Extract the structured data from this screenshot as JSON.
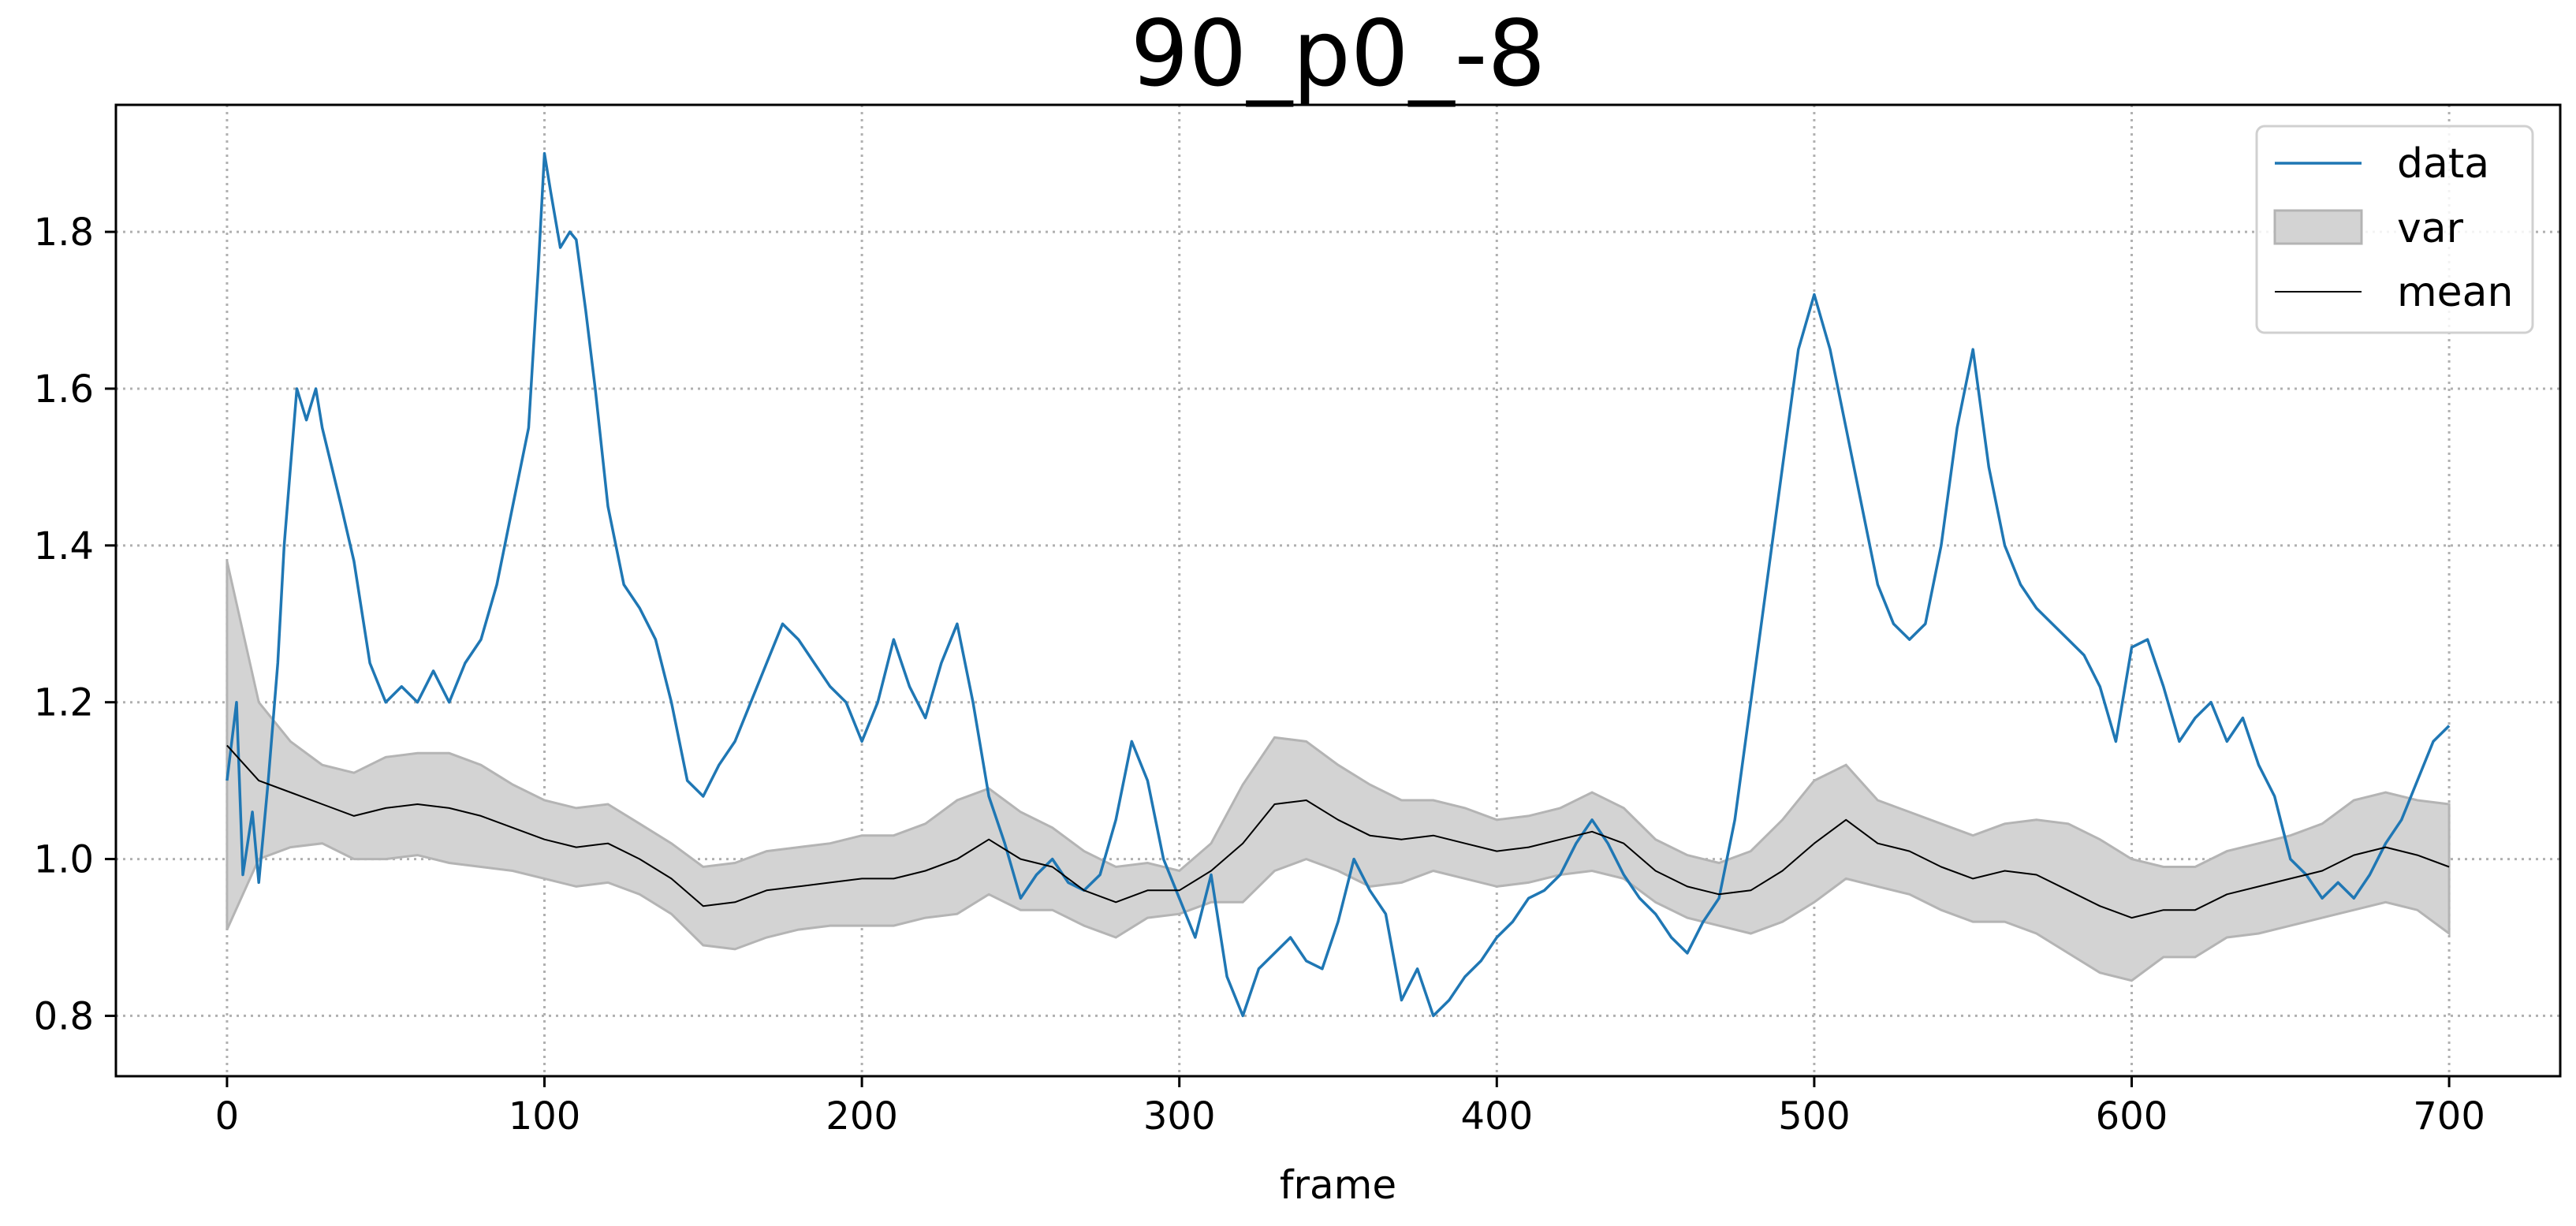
{
  "chart_data": {
    "type": "line",
    "title": "90_p0_-8",
    "xlabel": "frame",
    "ylabel": "",
    "xlim": [
      -35,
      735
    ],
    "ylim": [
      0.723,
      1.962
    ],
    "xticks": [
      0,
      100,
      200,
      300,
      400,
      500,
      600,
      700
    ],
    "xtick_labels": [
      "0",
      "100",
      "200",
      "300",
      "400",
      "500",
      "600",
      "700"
    ],
    "yticks": [
      0.8,
      1.0,
      1.2,
      1.4,
      1.6,
      1.8
    ],
    "ytick_labels": [
      "0.8",
      "1.0",
      "1.2",
      "1.4",
      "1.6",
      "1.8"
    ],
    "grid": true,
    "legend_position": "top-right",
    "legend": [
      "data",
      "var",
      "mean"
    ],
    "colors": {
      "data": "#1f77b4",
      "mean": "#000000",
      "var_fill": "#d3d3d3",
      "var_edge": "#b4b4b4",
      "grid": "#b0b0b0"
    },
    "series": [
      {
        "name": "data",
        "x": [
          0,
          3,
          5,
          8,
          10,
          13,
          16,
          18,
          20,
          22,
          25,
          28,
          30,
          33,
          36,
          40,
          45,
          50,
          55,
          60,
          65,
          70,
          75,
          80,
          85,
          90,
          95,
          98,
          100,
          102,
          105,
          108,
          110,
          113,
          116,
          120,
          125,
          130,
          135,
          140,
          145,
          150,
          155,
          160,
          165,
          170,
          175,
          180,
          185,
          190,
          195,
          200,
          205,
          210,
          215,
          220,
          225,
          230,
          235,
          240,
          245,
          250,
          255,
          260,
          265,
          270,
          275,
          280,
          285,
          290,
          295,
          300,
          305,
          310,
          315,
          320,
          325,
          330,
          335,
          340,
          345,
          350,
          355,
          360,
          365,
          370,
          375,
          380,
          385,
          390,
          395,
          400,
          405,
          410,
          415,
          420,
          425,
          430,
          435,
          440,
          445,
          450,
          455,
          460,
          465,
          470,
          475,
          480,
          485,
          490,
          495,
          500,
          505,
          510,
          515,
          520,
          525,
          530,
          535,
          540,
          545,
          550,
          555,
          560,
          565,
          570,
          575,
          580,
          585,
          590,
          595,
          600,
          605,
          610,
          615,
          620,
          625,
          630,
          635,
          640,
          645,
          650,
          655,
          660,
          665,
          670,
          675,
          680,
          685,
          690,
          695,
          700
        ],
        "values": [
          1.1,
          1.2,
          0.98,
          1.06,
          0.97,
          1.1,
          1.25,
          1.4,
          1.5,
          1.6,
          1.56,
          1.6,
          1.55,
          1.5,
          1.45,
          1.38,
          1.25,
          1.2,
          1.22,
          1.2,
          1.24,
          1.2,
          1.25,
          1.28,
          1.35,
          1.45,
          1.55,
          1.75,
          1.9,
          1.85,
          1.78,
          1.8,
          1.79,
          1.7,
          1.6,
          1.45,
          1.35,
          1.32,
          1.28,
          1.2,
          1.1,
          1.08,
          1.12,
          1.15,
          1.2,
          1.25,
          1.3,
          1.28,
          1.25,
          1.22,
          1.2,
          1.15,
          1.2,
          1.28,
          1.22,
          1.18,
          1.25,
          1.3,
          1.2,
          1.08,
          1.02,
          0.95,
          0.98,
          1.0,
          0.97,
          0.96,
          0.98,
          1.05,
          1.15,
          1.1,
          1.0,
          0.95,
          0.9,
          0.98,
          0.85,
          0.8,
          0.86,
          0.88,
          0.9,
          0.87,
          0.86,
          0.92,
          1.0,
          0.96,
          0.93,
          0.82,
          0.86,
          0.8,
          0.82,
          0.85,
          0.87,
          0.9,
          0.92,
          0.95,
          0.96,
          0.98,
          1.02,
          1.05,
          1.02,
          0.98,
          0.95,
          0.93,
          0.9,
          0.88,
          0.92,
          0.95,
          1.05,
          1.2,
          1.35,
          1.5,
          1.65,
          1.72,
          1.65,
          1.55,
          1.45,
          1.35,
          1.3,
          1.28,
          1.3,
          1.4,
          1.55,
          1.65,
          1.5,
          1.4,
          1.35,
          1.32,
          1.3,
          1.28,
          1.26,
          1.22,
          1.15,
          1.27,
          1.28,
          1.22,
          1.15,
          1.18,
          1.2,
          1.15,
          1.18,
          1.12,
          1.08,
          1.0,
          0.98,
          0.95,
          0.97,
          0.95,
          0.98,
          1.02,
          1.05,
          1.1,
          1.15,
          1.17
        ]
      },
      {
        "name": "mean",
        "x": [
          0,
          10,
          20,
          30,
          40,
          50,
          60,
          70,
          80,
          90,
          100,
          110,
          120,
          130,
          140,
          150,
          160,
          170,
          180,
          190,
          200,
          210,
          220,
          230,
          240,
          250,
          260,
          270,
          280,
          290,
          300,
          310,
          320,
          330,
          340,
          350,
          360,
          370,
          380,
          390,
          400,
          410,
          420,
          430,
          440,
          450,
          460,
          470,
          480,
          490,
          500,
          510,
          520,
          530,
          540,
          550,
          560,
          570,
          580,
          590,
          600,
          610,
          620,
          630,
          640,
          650,
          660,
          670,
          680,
          690,
          700
        ],
        "values": [
          1.145,
          1.1,
          1.085,
          1.07,
          1.055,
          1.065,
          1.07,
          1.065,
          1.055,
          1.04,
          1.025,
          1.015,
          1.02,
          1.0,
          0.975,
          0.94,
          0.945,
          0.96,
          0.965,
          0.97,
          0.975,
          0.975,
          0.985,
          1.0,
          1.025,
          1.0,
          0.99,
          0.96,
          0.945,
          0.96,
          0.96,
          0.985,
          1.02,
          1.07,
          1.075,
          1.05,
          1.03,
          1.025,
          1.03,
          1.02,
          1.01,
          1.015,
          1.025,
          1.035,
          1.02,
          0.985,
          0.965,
          0.955,
          0.96,
          0.985,
          1.02,
          1.05,
          1.02,
          1.01,
          0.99,
          0.975,
          0.985,
          0.98,
          0.96,
          0.94,
          0.925,
          0.935,
          0.935,
          0.955,
          0.965,
          0.975,
          0.985,
          1.005,
          1.015,
          1.005,
          0.99
        ]
      },
      {
        "name": "var",
        "x": [
          0,
          10,
          20,
          30,
          40,
          50,
          60,
          70,
          80,
          90,
          100,
          110,
          120,
          130,
          140,
          150,
          160,
          170,
          180,
          190,
          200,
          210,
          220,
          230,
          240,
          250,
          260,
          270,
          280,
          290,
          300,
          310,
          320,
          330,
          340,
          350,
          360,
          370,
          380,
          390,
          400,
          410,
          420,
          430,
          440,
          450,
          460,
          470,
          480,
          490,
          500,
          510,
          520,
          530,
          540,
          550,
          560,
          570,
          580,
          590,
          600,
          610,
          620,
          630,
          640,
          650,
          660,
          670,
          680,
          690,
          700
        ],
        "upper": [
          1.38,
          1.2,
          1.15,
          1.12,
          1.11,
          1.13,
          1.135,
          1.135,
          1.12,
          1.095,
          1.075,
          1.065,
          1.07,
          1.045,
          1.02,
          0.99,
          0.995,
          1.01,
          1.015,
          1.02,
          1.03,
          1.03,
          1.045,
          1.075,
          1.09,
          1.06,
          1.04,
          1.01,
          0.99,
          0.995,
          0.985,
          1.02,
          1.095,
          1.155,
          1.15,
          1.12,
          1.095,
          1.075,
          1.075,
          1.065,
          1.05,
          1.055,
          1.065,
          1.085,
          1.065,
          1.025,
          1.005,
          0.995,
          1.01,
          1.05,
          1.1,
          1.12,
          1.075,
          1.06,
          1.045,
          1.03,
          1.045,
          1.05,
          1.045,
          1.025,
          1.0,
          0.99,
          0.99,
          1.01,
          1.02,
          1.03,
          1.045,
          1.075,
          1.085,
          1.075,
          1.07
        ],
        "lower": [
          0.91,
          1.0,
          1.015,
          1.02,
          1.0,
          1.0,
          1.005,
          0.995,
          0.99,
          0.985,
          0.975,
          0.965,
          0.97,
          0.955,
          0.93,
          0.89,
          0.885,
          0.9,
          0.91,
          0.915,
          0.915,
          0.915,
          0.925,
          0.93,
          0.955,
          0.935,
          0.935,
          0.915,
          0.9,
          0.925,
          0.93,
          0.945,
          0.945,
          0.985,
          1.0,
          0.985,
          0.965,
          0.97,
          0.985,
          0.975,
          0.965,
          0.97,
          0.98,
          0.985,
          0.975,
          0.945,
          0.925,
          0.915,
          0.905,
          0.92,
          0.945,
          0.975,
          0.965,
          0.955,
          0.935,
          0.92,
          0.92,
          0.905,
          0.88,
          0.855,
          0.845,
          0.875,
          0.875,
          0.9,
          0.905,
          0.915,
          0.925,
          0.935,
          0.945,
          0.935,
          0.905
        ]
      }
    ]
  }
}
